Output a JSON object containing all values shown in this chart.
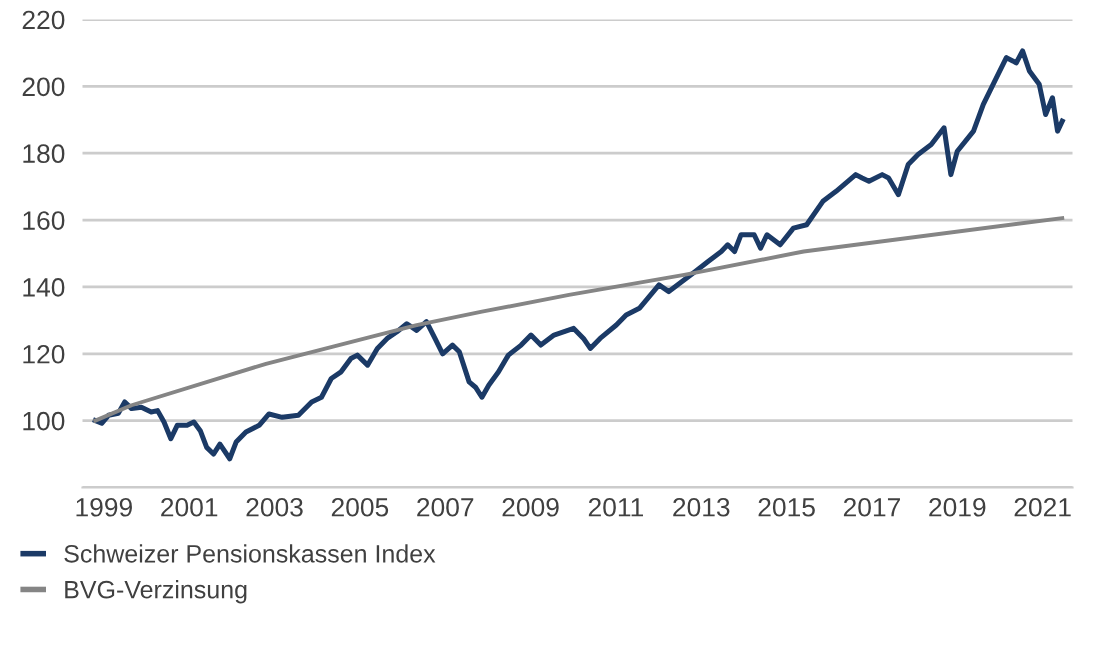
{
  "chart_data": {
    "type": "line",
    "series": [
      {
        "name": "Schweizer Pensionskassen Index",
        "color": "#1b3a66",
        "x": [
          1998.8,
          1998.95,
          1999.11,
          1999.34,
          1999.49,
          1999.65,
          1999.88,
          2000.11,
          2000.26,
          2000.41,
          2000.57,
          2000.72,
          2000.95,
          2001.11,
          2001.26,
          2001.41,
          2001.57,
          2001.72,
          2001.95,
          2002.1,
          2002.33,
          2002.64,
          2002.87,
          2003.18,
          2003.56,
          2003.87,
          2004.1,
          2004.33,
          2004.56,
          2004.79,
          2004.94,
          2005.18,
          2005.41,
          2005.64,
          2005.87,
          2006.1,
          2006.33,
          2006.56,
          2006.76,
          2006.94,
          2007.17,
          2007.33,
          2007.56,
          2007.71,
          2007.86,
          2008.02,
          2008.25,
          2008.48,
          2008.78,
          2009.01,
          2009.24,
          2009.55,
          2010.01,
          2010.24,
          2010.4,
          2010.63,
          2011.01,
          2011.24,
          2011.55,
          2012.01,
          2012.24,
          2012.55,
          2012.86,
          2013.16,
          2013.47,
          2013.62,
          2013.78,
          2013.93,
          2014.24,
          2014.39,
          2014.54,
          2014.85,
          2015.16,
          2015.47,
          2015.85,
          2016.16,
          2016.62,
          2016.77,
          2016.93,
          2017.24,
          2017.39,
          2017.62,
          2017.85,
          2018.08,
          2018.39,
          2018.69,
          2018.85,
          2019.0,
          2019.38,
          2019.61,
          2019.84,
          2020.15,
          2020.3,
          2020.38,
          2020.53,
          2020.69,
          2020.92,
          2021.07,
          2021.23,
          2021.35,
          2021.46
        ],
        "values": [
          100,
          99.2,
          101.6,
          102.2,
          105.6,
          103.6,
          104,
          102.6,
          103,
          99.6,
          94.6,
          98.6,
          98.6,
          99.6,
          97,
          92,
          90,
          93,
          88.6,
          93.6,
          96.6,
          98.6,
          102,
          101,
          101.6,
          105.6,
          107,
          112.6,
          114.6,
          118.6,
          119.6,
          116.6,
          121.6,
          124.6,
          126.6,
          129,
          127,
          129.6,
          124.6,
          120,
          122.6,
          120.6,
          111.6,
          110,
          107,
          110.6,
          114.6,
          119.6,
          122.6,
          125.6,
          122.6,
          125.6,
          127.6,
          124.6,
          121.6,
          124.6,
          128.6,
          131.6,
          133.6,
          140.6,
          138.6,
          141.6,
          144.6,
          147.6,
          150.6,
          152.6,
          150.6,
          155.6,
          155.6,
          151.6,
          155.6,
          152.6,
          157.6,
          158.6,
          165.6,
          168.6,
          173.6,
          172.6,
          171.6,
          173.6,
          172.6,
          167.6,
          176.6,
          179.6,
          182.6,
          187.6,
          173.6,
          180.6,
          186.6,
          194.6,
          200.6,
          208.6,
          207.6,
          207,
          210.6,
          204.6,
          200.6,
          191.6,
          196.6,
          186.6,
          189.6
        ]
      },
      {
        "name": "BVG-Verzinsung",
        "color": "#858585",
        "x": [
          1998.8,
          1999.65,
          2002.8,
          2006.33,
          2007.86,
          2009.9,
          2012.6,
          2015.4,
          2021.46
        ],
        "values": [
          100,
          104.6,
          117,
          128.6,
          132.6,
          137.6,
          143.6,
          150.6,
          160.6
        ]
      }
    ],
    "xlim": [
      1998.5,
      2021.7
    ],
    "xticks": [
      1999,
      2001,
      2003,
      2005,
      2007,
      2009,
      2011,
      2013,
      2015,
      2017,
      2019,
      2021
    ],
    "ylim": [
      80,
      220
    ],
    "yticks": [
      {
        "value": 80,
        "label": null
      },
      100,
      120,
      140,
      160,
      180,
      200,
      220
    ],
    "grid": "y",
    "legend": "bottom",
    "marker": "none",
    "line_style": "solid"
  }
}
